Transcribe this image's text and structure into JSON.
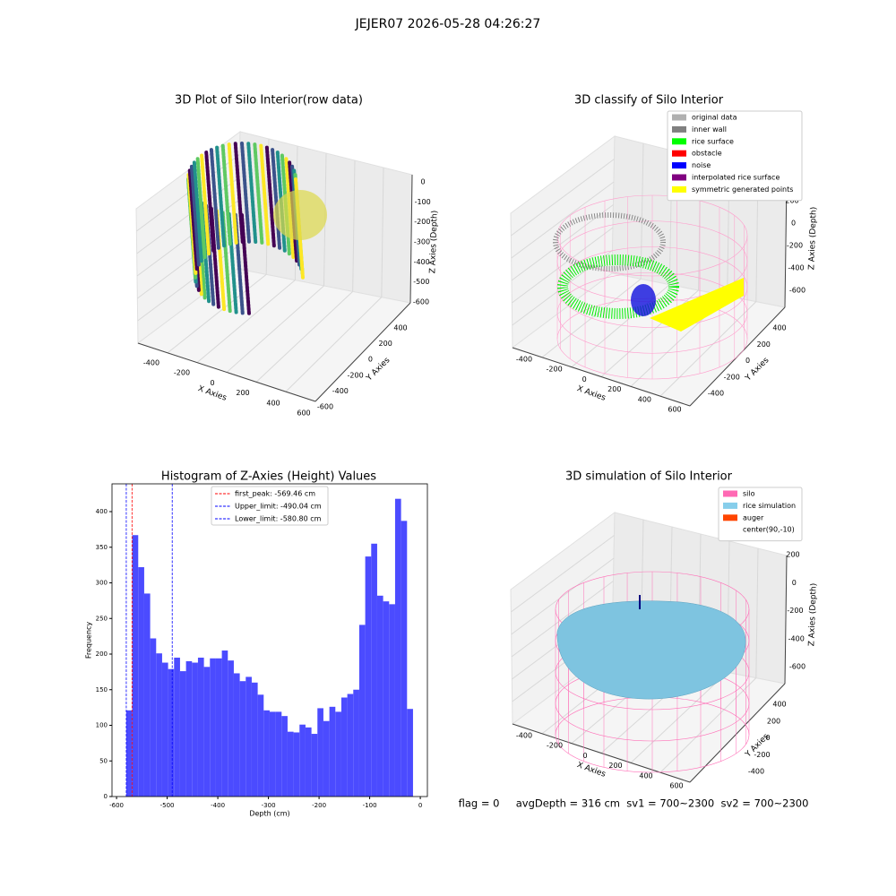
{
  "title": "JEJER07 2026-05-28 04:26:27",
  "footer": "flag = 0     avgDepth = 316 cm  sv1 = 700~2300  sv2 = 700~2300",
  "chart_data": [
    {
      "type": "scatter3d",
      "title": "3D Plot of Silo Interior(row data)",
      "x_label": "X Axies",
      "y_label": "Y Axies",
      "z_label": "Z Axies (Depth)",
      "xticks": [
        -400,
        -200,
        0,
        200,
        400,
        600
      ],
      "yticks": [
        -600,
        -400,
        -200,
        0,
        200,
        400
      ],
      "zticks": [
        0,
        -100,
        -200,
        -300,
        -400,
        -500,
        -600
      ]
    },
    {
      "type": "classify3d",
      "title": "3D classify of Silo Interior",
      "x_label": "X Axies",
      "y_label": "Y Axies",
      "z_label": "Z Axies (Depth)",
      "xticks": [
        -400,
        -200,
        0,
        200,
        400,
        600
      ],
      "yticks": [
        -400,
        -200,
        0,
        200,
        400
      ],
      "zticks": [
        200,
        0,
        -200,
        -400,
        -600
      ],
      "legend": [
        {
          "name": "original data",
          "color": "#b0b0b0"
        },
        {
          "name": "inner wall",
          "color": "#808080"
        },
        {
          "name": "rice surface",
          "color": "#00ff00"
        },
        {
          "name": "obstacle",
          "color": "#ff0000"
        },
        {
          "name": "noise",
          "color": "#0000ff"
        },
        {
          "name": "interpolated rice surface",
          "color": "#800080"
        },
        {
          "name": "symmetric generated points",
          "color": "#ffff00"
        }
      ]
    },
    {
      "type": "histogram",
      "title": "Histogram of Z-Axies (Height) Values",
      "x_label": "Depth (cm)",
      "y_label": "Frequency",
      "color": "#4b4bff",
      "bins": [
        -580.8,
        -569.0,
        -557.2,
        -545.4,
        -533.6,
        -521.8,
        -510.0,
        -498.2,
        -486.4,
        -474.6,
        -462.8,
        -451.0,
        -439.2,
        -427.4,
        -415.6,
        -403.8,
        -392.0,
        -380.2,
        -368.4,
        -356.6,
        -344.8,
        -333.0,
        -321.2,
        -309.4,
        -297.6,
        -285.8,
        -274.0,
        -262.2,
        -250.4,
        -238.6,
        -226.8,
        -215.0,
        -203.2,
        -191.4,
        -179.6,
        -167.8,
        -156.0,
        -144.2,
        -132.4,
        -120.6,
        -108.8,
        -97.0,
        -85.2,
        -73.4,
        -61.6,
        -49.8,
        -38.0,
        -26.2,
        -14.4
      ],
      "values": [
        121,
        367,
        322,
        285,
        222,
        201,
        188,
        179,
        195,
        176,
        190,
        188,
        195,
        182,
        194,
        194,
        205,
        191,
        173,
        162,
        168,
        160,
        143,
        121,
        119,
        119,
        113,
        91,
        90,
        101,
        97,
        88,
        124,
        106,
        126,
        119,
        139,
        144,
        150,
        241,
        337,
        355,
        282,
        274,
        270,
        418,
        387,
        123
      ],
      "xlim": [
        -609,
        14
      ],
      "ylim": [
        0,
        439
      ],
      "xticks": [
        -600,
        -500,
        -400,
        -300,
        -200,
        -100,
        0
      ],
      "yticks": [
        0,
        50,
        100,
        150,
        200,
        250,
        300,
        350,
        400
      ],
      "lines": [
        {
          "name": "first_peak: -569.46 cm",
          "value": -569.46,
          "color": "#ff0000"
        },
        {
          "name": "Upper_limit: -490.04 cm",
          "value": -490.04,
          "color": "#0000ff"
        },
        {
          "name": "Lower_limit: -580.80 cm",
          "value": -580.8,
          "color": "#0000ff"
        }
      ]
    },
    {
      "type": "surface3d",
      "title": "3D simulation of Silo Interior",
      "x_label": "X Axies",
      "y_label": "Y Axies",
      "z_label": "Z Axies (Depth)",
      "xticks": [
        -400,
        -200,
        0,
        200,
        400,
        600
      ],
      "yticks": [
        -400,
        -200,
        0,
        200,
        400
      ],
      "zticks": [
        200,
        0,
        -200,
        -400,
        -600
      ],
      "legend": [
        {
          "name": "silo",
          "color": "#ff69b4"
        },
        {
          "name": "rice simulation",
          "color": "#87ceeb"
        },
        {
          "name": "auger",
          "color": "#ff4500"
        },
        {
          "name": "center(90,-10)",
          "color": "#ffffff"
        }
      ]
    }
  ]
}
